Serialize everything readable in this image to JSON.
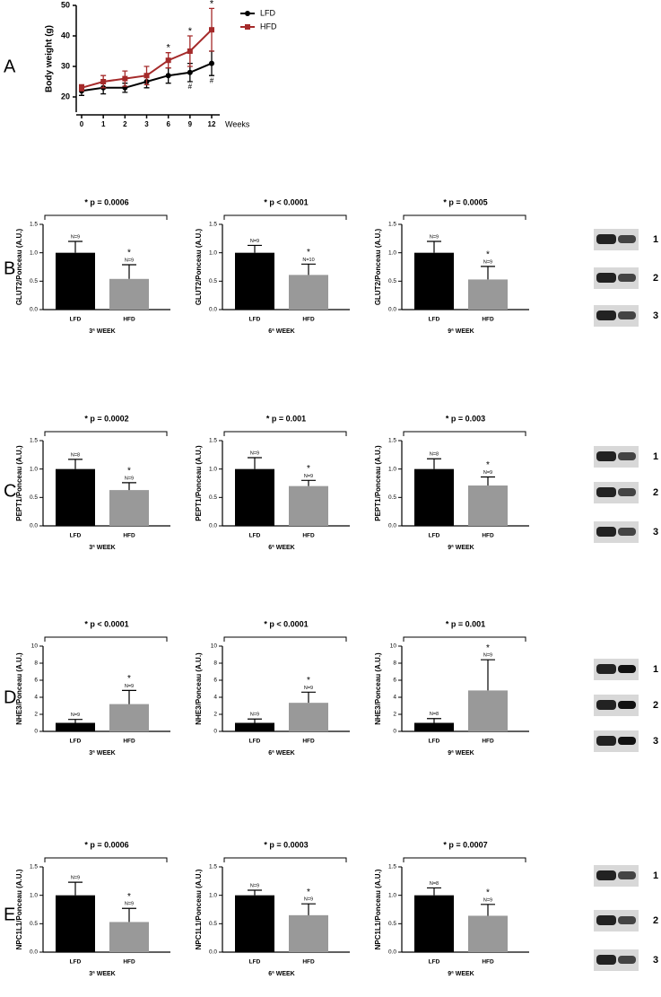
{
  "panel_labels": [
    "A",
    "B",
    "C",
    "D",
    "E"
  ],
  "blots": [
    {
      "lanes": [
        "1",
        "2",
        "3"
      ]
    },
    {
      "lanes": [
        "1",
        "2",
        "3"
      ]
    },
    {
      "lanes": [
        "1",
        "2",
        "3"
      ]
    },
    {
      "lanes": [
        "1",
        "2",
        "3"
      ]
    }
  ],
  "chart_data": [
    {
      "type": "line",
      "y_label": "Body weight (g)",
      "x_label": "Weeks",
      "categories": [
        "0",
        "1",
        "2",
        "3",
        "6",
        "9",
        "12"
      ],
      "ylim": [
        15,
        50
      ],
      "yticks": [
        20,
        30,
        40,
        50
      ],
      "legend": "upper right",
      "series": [
        {
          "name": "LFD",
          "color": "#000000",
          "values": [
            22,
            23,
            23,
            25,
            27,
            28,
            31
          ],
          "errors": [
            1.5,
            2,
            1.5,
            2,
            2.5,
            3,
            4
          ],
          "annotations": [
            null,
            null,
            null,
            null,
            null,
            "#",
            "#"
          ]
        },
        {
          "name": "HFD",
          "color": "#a52a2a",
          "values": [
            23,
            25,
            26,
            27,
            32,
            35,
            42
          ],
          "errors": [
            1,
            2,
            2.5,
            3,
            2.5,
            5,
            7
          ],
          "annotations": [
            null,
            null,
            null,
            null,
            "*",
            "*",
            "*"
          ]
        }
      ]
    },
    {
      "type": "bar",
      "title": "* p = 0.0006",
      "y_label": "GLUT2/Ponceau (A.U.)",
      "x_label": "3ª WEEK",
      "categories": [
        "LFD",
        "HFD"
      ],
      "colors": [
        "#000000",
        "#999999"
      ],
      "values": [
        1.0,
        0.54
      ],
      "errors": [
        0.2,
        0.25
      ],
      "n_labels": [
        "N=9",
        "N=9"
      ],
      "annotations": [
        null,
        "*"
      ],
      "ylim": [
        0,
        1.5
      ],
      "yticks": [
        {
          "value": 0,
          "label": "0.0"
        },
        0.5,
        {
          "value": 1,
          "label": "1.0"
        },
        1.5
      ]
    },
    {
      "type": "bar",
      "title": "* p < 0.0001",
      "y_label": "GLUT2/Ponceau (A.U.)",
      "x_label": "6ª WEEK",
      "categories": [
        "LFD",
        "HFD"
      ],
      "colors": [
        "#000000",
        "#999999"
      ],
      "values": [
        1.0,
        0.61
      ],
      "errors": [
        0.13,
        0.19
      ],
      "n_labels": [
        "N=9",
        "N=10"
      ],
      "annotations": [
        null,
        "*"
      ],
      "ylim": [
        0,
        1.5
      ],
      "yticks": [
        {
          "value": 0,
          "label": "0.0"
        },
        0.5,
        {
          "value": 1,
          "label": "1.0"
        },
        1.5
      ]
    },
    {
      "type": "bar",
      "title": "* p = 0.0005",
      "y_label": "GLUT2/Ponceau (A.U.)",
      "x_label": "9ª WEEK",
      "categories": [
        "LFD",
        "HFD"
      ],
      "colors": [
        "#000000",
        "#999999"
      ],
      "values": [
        1.0,
        0.53
      ],
      "errors": [
        0.2,
        0.23
      ],
      "n_labels": [
        "N=9",
        "N=9"
      ],
      "annotations": [
        null,
        "*"
      ],
      "ylim": [
        0,
        1.5
      ],
      "yticks": [
        {
          "value": 0,
          "label": "0.0"
        },
        0.5,
        {
          "value": 1,
          "label": "1.0"
        },
        1.5
      ]
    },
    {
      "type": "bar",
      "title": "* p = 0.0002",
      "y_label": "PEPT1/Ponceau (A.U.)",
      "x_label": "3ª WEEK",
      "categories": [
        "LFD",
        "HFD"
      ],
      "colors": [
        "#000000",
        "#999999"
      ],
      "values": [
        1.0,
        0.63
      ],
      "errors": [
        0.17,
        0.13
      ],
      "n_labels": [
        "N=8",
        "N=9"
      ],
      "annotations": [
        null,
        "*"
      ],
      "ylim": [
        0,
        1.5
      ],
      "yticks": [
        {
          "value": 0,
          "label": "0.0"
        },
        0.5,
        {
          "value": 1,
          "label": "1.0"
        },
        1.5
      ]
    },
    {
      "type": "bar",
      "title": "* p = 0.001",
      "y_label": "PEPT1/Ponceau (A.U.)",
      "x_label": "6ª WEEK",
      "categories": [
        "LFD",
        "HFD"
      ],
      "colors": [
        "#000000",
        "#999999"
      ],
      "values": [
        1.0,
        0.7
      ],
      "errors": [
        0.2,
        0.1
      ],
      "n_labels": [
        "N=9",
        "N=9"
      ],
      "annotations": [
        null,
        "*"
      ],
      "ylim": [
        0,
        1.5
      ],
      "yticks": [
        {
          "value": 0,
          "label": "0.0"
        },
        0.5,
        {
          "value": 1,
          "label": "1.0"
        },
        1.5
      ]
    },
    {
      "type": "bar",
      "title": "* p = 0.003",
      "y_label": "PEPT1/Ponceau (A.U.)",
      "x_label": "9ª WEEK",
      "categories": [
        "LFD",
        "HFD"
      ],
      "colors": [
        "#000000",
        "#999999"
      ],
      "values": [
        1.0,
        0.71
      ],
      "errors": [
        0.18,
        0.15
      ],
      "n_labels": [
        "N=8",
        "N=9"
      ],
      "annotations": [
        null,
        "*"
      ],
      "ylim": [
        0,
        1.5
      ],
      "yticks": [
        {
          "value": 0,
          "label": "0.0"
        },
        0.5,
        {
          "value": 1,
          "label": "1.0"
        },
        1.5
      ]
    },
    {
      "type": "bar",
      "title": "* p < 0.0001",
      "y_label": "NHE3/Ponceau (A.U.)",
      "x_label": "3ª WEEK",
      "categories": [
        "LFD",
        "HFD"
      ],
      "colors": [
        "#000000",
        "#999999"
      ],
      "values": [
        1.0,
        3.2
      ],
      "errors": [
        0.4,
        1.6
      ],
      "n_labels": [
        "N=9",
        "N=9"
      ],
      "annotations": [
        null,
        "*"
      ],
      "ylim": [
        0,
        10
      ],
      "yticks": [
        0,
        2,
        4,
        6,
        8,
        10
      ]
    },
    {
      "type": "bar",
      "title": "* p < 0.0001",
      "y_label": "NHE3/Ponceau (A.U.)",
      "x_label": "6ª WEEK",
      "categories": [
        "LFD",
        "HFD"
      ],
      "colors": [
        "#000000",
        "#999999"
      ],
      "values": [
        1.0,
        3.35
      ],
      "errors": [
        0.45,
        1.25
      ],
      "n_labels": [
        "N=9",
        "N=9"
      ],
      "annotations": [
        null,
        "*"
      ],
      "ylim": [
        0,
        10
      ],
      "yticks": [
        0,
        2,
        4,
        6,
        8,
        10
      ]
    },
    {
      "type": "bar",
      "title": "* p = 0.001",
      "y_label": "NHE3/Ponceau (A.U.)",
      "x_label": "9ª WEEK",
      "categories": [
        "LFD",
        "HFD"
      ],
      "colors": [
        "#000000",
        "#999999"
      ],
      "values": [
        1.0,
        4.8
      ],
      "errors": [
        0.5,
        3.6
      ],
      "n_labels": [
        "N=8",
        "N=9"
      ],
      "annotations": [
        null,
        "*"
      ],
      "ylim": [
        0,
        10
      ],
      "yticks": [
        0,
        2,
        4,
        6,
        8,
        10
      ]
    },
    {
      "type": "bar",
      "title": "* p = 0.0006",
      "y_label": "NPC1L1/Ponceau (A.U.)",
      "x_label": "3ª WEEK",
      "categories": [
        "LFD",
        "HFD"
      ],
      "colors": [
        "#000000",
        "#999999"
      ],
      "values": [
        1.0,
        0.53
      ],
      "errors": [
        0.23,
        0.24
      ],
      "n_labels": [
        "N=9",
        "N=9"
      ],
      "annotations": [
        null,
        "*"
      ],
      "ylim": [
        0,
        1.5
      ],
      "yticks": [
        {
          "value": 0,
          "label": "0.0"
        },
        0.5,
        {
          "value": 1,
          "label": "1.0"
        },
        1.5
      ]
    },
    {
      "type": "bar",
      "title": "* p = 0.0003",
      "y_label": "NPC1L1/Ponceau (A.U.)",
      "x_label": "6ª WEEK",
      "categories": [
        "LFD",
        "HFD"
      ],
      "colors": [
        "#000000",
        "#999999"
      ],
      "values": [
        1.0,
        0.65
      ],
      "errors": [
        0.09,
        0.2
      ],
      "n_labels": [
        "N=9",
        "N=9"
      ],
      "annotations": [
        null,
        "*"
      ],
      "ylim": [
        0,
        1.5
      ],
      "yticks": [
        {
          "value": 0,
          "label": "0.0"
        },
        0.5,
        {
          "value": 1,
          "label": "1.0"
        },
        1.5
      ]
    },
    {
      "type": "bar",
      "title": "* p = 0.0007",
      "y_label": "NPC1L1/Ponceau (A.U.)",
      "x_label": "9ª WEEK",
      "categories": [
        "LFD",
        "HFD"
      ],
      "colors": [
        "#000000",
        "#999999"
      ],
      "values": [
        1.0,
        0.64
      ],
      "errors": [
        0.13,
        0.2
      ],
      "n_labels": [
        "N=8",
        "N=9"
      ],
      "annotations": [
        null,
        "*"
      ],
      "ylim": [
        0,
        1.5
      ],
      "yticks": [
        {
          "value": 0,
          "label": "0.0"
        },
        0.5,
        {
          "value": 1,
          "label": "1.0"
        },
        1.5
      ]
    }
  ]
}
